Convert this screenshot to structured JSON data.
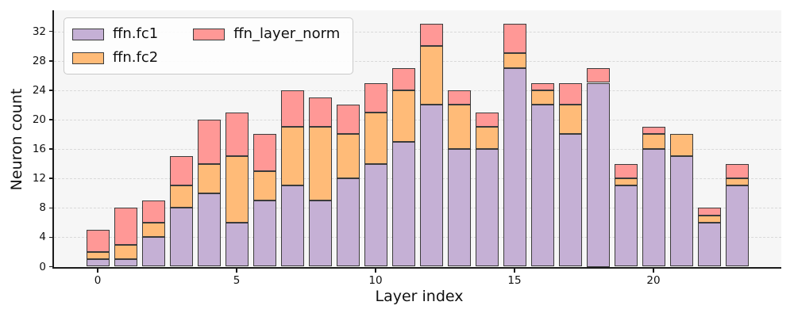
{
  "chart_data": {
    "type": "bar",
    "stacked": true,
    "title": "",
    "xlabel": "Layer index",
    "ylabel": "Neuron count",
    "categories": [
      0,
      1,
      2,
      3,
      4,
      5,
      6,
      7,
      8,
      9,
      10,
      11,
      12,
      13,
      14,
      15,
      16,
      17,
      18,
      19,
      20,
      21,
      22,
      23
    ],
    "series": [
      {
        "name": "ffn.fc1",
        "color": "#c5b0d5",
        "values": [
          1,
          1,
          4,
          8,
          10,
          6,
          9,
          11,
          9,
          12,
          14,
          17,
          22,
          16,
          16,
          27,
          22,
          18,
          25,
          11,
          16,
          15,
          6,
          11
        ]
      },
      {
        "name": "ffn.fc2",
        "color": "#ffbb78",
        "values": [
          1,
          2,
          2,
          3,
          4,
          9,
          4,
          8,
          10,
          6,
          7,
          7,
          8,
          6,
          3,
          2,
          2,
          4,
          0,
          1,
          2,
          3,
          1,
          1
        ]
      },
      {
        "name": "ffn_layer_norm",
        "color": "#ff9896",
        "values": [
          3,
          5,
          3,
          4,
          6,
          6,
          5,
          5,
          4,
          4,
          4,
          3,
          3,
          2,
          2,
          4,
          1,
          3,
          2,
          2,
          1,
          0,
          1,
          2
        ]
      }
    ],
    "totals": [
      5,
      8,
      9,
      15,
      20,
      21,
      18,
      24,
      23,
      22,
      25,
      27,
      33,
      24,
      21,
      33,
      25,
      25,
      27,
      14,
      19,
      18,
      8,
      14
    ],
    "y_ticks": [
      0,
      4,
      8,
      12,
      16,
      20,
      24,
      28,
      32
    ],
    "x_ticks": [
      0,
      5,
      10,
      15,
      20
    ],
    "ylim": [
      0,
      34.9
    ],
    "xlim": [
      -1.6,
      24.6
    ],
    "grid": {
      "axis": "y",
      "style": "dashed",
      "color": "#d9d9d9",
      "axisbelow": true
    },
    "legend": {
      "position": "upper-left",
      "columns": 2
    },
    "colors": {
      "edge": "#3b3b3b",
      "plot_background": "#f6f6f6",
      "figure_background": "#ffffff",
      "text": "#111111"
    }
  }
}
